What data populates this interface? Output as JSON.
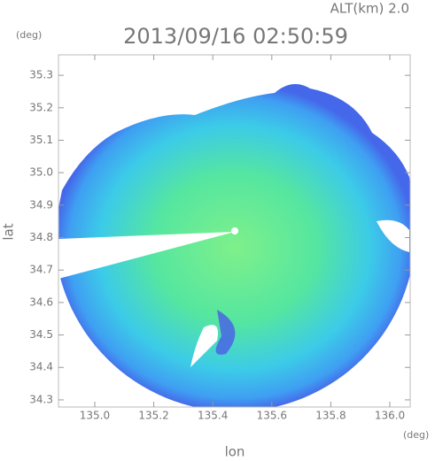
{
  "header": {
    "altitude": "ALT(km) 2.0",
    "timestamp": "2013/09/16 02:50:59",
    "y_unit": "(deg)",
    "x_unit": "(deg)"
  },
  "axes": {
    "xlabel": "lon",
    "ylabel": "lat",
    "xlim": [
      134.877,
      136.069
    ],
    "xticks": [
      {
        "value": 135.0,
        "label": "135.0"
      },
      {
        "value": 135.2,
        "label": "135.2"
      },
      {
        "value": 135.4,
        "label": "135.4"
      },
      {
        "value": 135.6,
        "label": "135.6"
      },
      {
        "value": 135.8,
        "label": "135.8"
      },
      {
        "value": 136.0,
        "label": "136.0"
      }
    ],
    "ylim": [
      34.278,
      35.363
    ],
    "yticks": [
      34.3,
      34.4,
      34.5,
      34.6,
      34.7,
      34.8,
      34.9,
      {
        "value": 35.0,
        "label": "35.0"
      },
      35.1,
      35.2,
      35.3
    ]
  }
}
